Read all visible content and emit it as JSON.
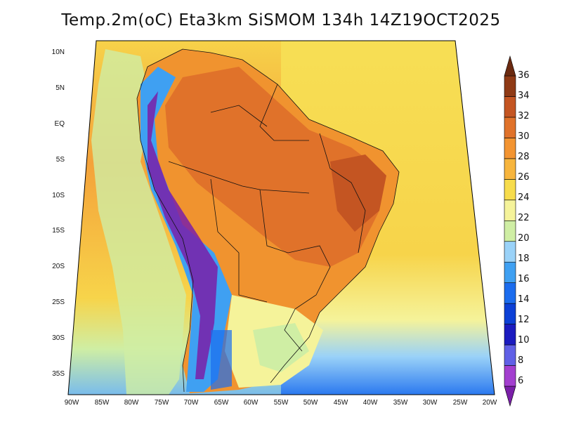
{
  "title": "Temp.2m(oC) Eta3km SiSMOM 134h 14Z19OCT2025",
  "lat_labels": [
    "10N",
    "5N",
    "EQ",
    "5S",
    "10S",
    "15S",
    "20S",
    "25S",
    "30S",
    "35S"
  ],
  "lon_labels": [
    "90W",
    "85W",
    "80W",
    "75W",
    "70W",
    "65W",
    "60W",
    "55W",
    "50W",
    "45W",
    "40W",
    "35W",
    "30W",
    "25W",
    "20W"
  ],
  "colorbar": {
    "labels": [
      "6",
      "8",
      "10",
      "12",
      "14",
      "16",
      "18",
      "20",
      "22",
      "24",
      "26",
      "28",
      "30",
      "32",
      "34",
      "36"
    ],
    "colors": [
      "#7a1fa8",
      "#a33fcf",
      "#6060e6",
      "#1b1bbf",
      "#0c40d6",
      "#1b6cee",
      "#3fa0f2",
      "#9ad2f8",
      "#cfeea4",
      "#f5f39a",
      "#f7dc4c",
      "#f7b53d",
      "#f39431",
      "#e0722a",
      "#c45522",
      "#8f3a15",
      "#6b2a10"
    ]
  }
}
